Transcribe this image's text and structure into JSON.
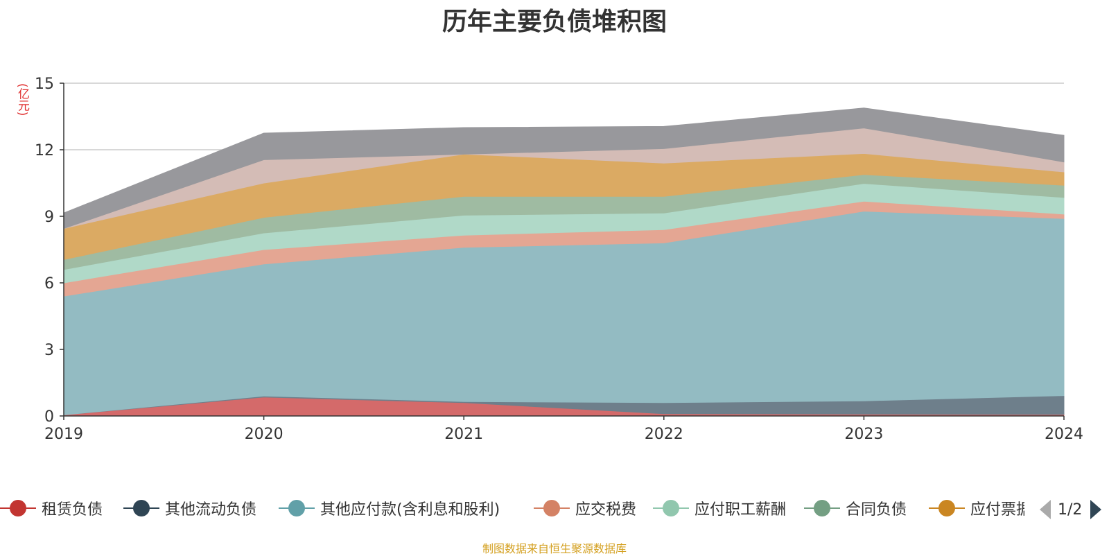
{
  "chart_data": {
    "type": "area",
    "stacked": true,
    "title": "历年主要负债堆积图",
    "unit_label": "(亿元)",
    "x": [
      "2019",
      "2020",
      "2021",
      "2022",
      "2023",
      "2024"
    ],
    "ylim": [
      0,
      15
    ],
    "yticks": [
      0,
      3,
      6,
      9,
      12,
      15
    ],
    "grid": true,
    "series": [
      {
        "name": "租赁负债",
        "color": "#d46a6a",
        "legend_color": "#c23531",
        "values": [
          0.05,
          0.85,
          0.6,
          0.1,
          0.08,
          0.07
        ]
      },
      {
        "name": "其他流动负债",
        "color": "#6e7f8b",
        "legend_color": "#2f4554",
        "values": [
          0.0,
          0.05,
          0.05,
          0.5,
          0.6,
          0.85
        ]
      },
      {
        "name": "其他应付款(含利息和股利)",
        "color": "#93bbc2",
        "legend_color": "#61a0a8",
        "values": [
          5.35,
          5.95,
          6.95,
          7.2,
          8.55,
          7.98
        ]
      },
      {
        "name": "应交税费",
        "color": "#e4a693",
        "legend_color": "#d48265",
        "values": [
          0.6,
          0.65,
          0.55,
          0.6,
          0.45,
          0.2
        ]
      },
      {
        "name": "应付职工薪酬",
        "color": "#b0d9c8",
        "legend_color": "#91c7ae",
        "values": [
          0.6,
          0.75,
          0.9,
          0.75,
          0.8,
          0.75
        ]
      },
      {
        "name": "合同负债",
        "color": "#9fbba2",
        "legend_color": "#749f83",
        "values": [
          0.45,
          0.7,
          0.85,
          0.75,
          0.4,
          0.55
        ]
      },
      {
        "name": "应付票据",
        "color": "#dbaa63",
        "legend_color": "#ca8622",
        "values": [
          1.4,
          1.55,
          1.9,
          1.5,
          0.95,
          0.6
        ]
      },
      {
        "name": "",
        "color": "#d4bcb6",
        "values": [
          0.0,
          1.05,
          0.0,
          0.65,
          1.15,
          0.45
        ]
      },
      {
        "name": "",
        "color": "#98989c",
        "values": [
          0.7,
          1.2,
          1.2,
          1.0,
          0.9,
          1.2
        ]
      }
    ]
  },
  "legend": {
    "page_text": "1/2",
    "visible_labels": [
      "租赁负债",
      "其他流动负债",
      "其他应付款(含利息和股利)",
      "应交税费",
      "应付职工薪酬",
      "合同负债",
      "应付票据"
    ]
  },
  "source_text": "制图数据来自恒生聚源数据库"
}
